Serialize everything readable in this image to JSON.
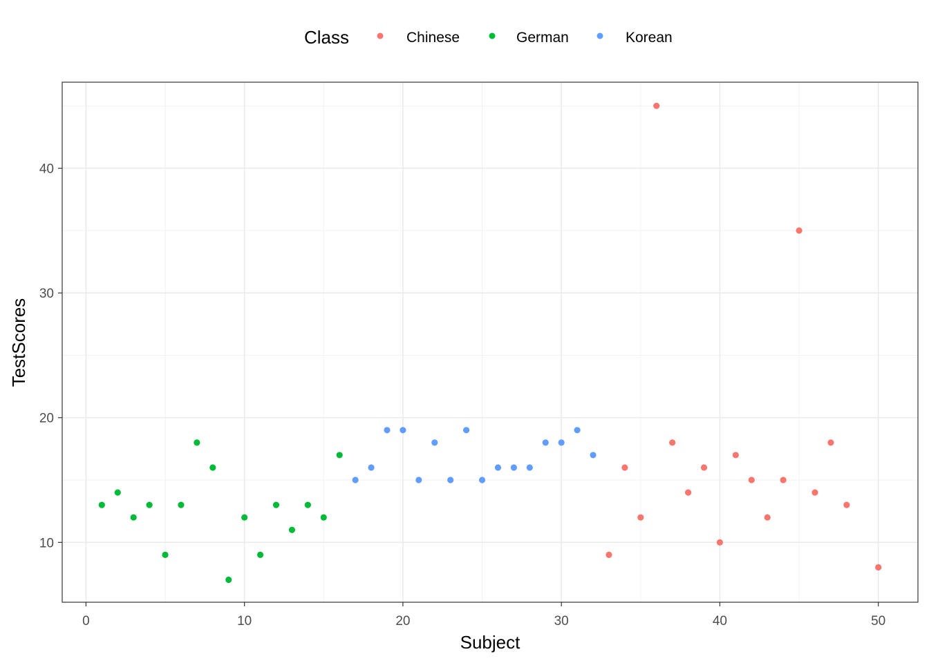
{
  "chart_data": {
    "type": "scatter",
    "xlabel": "Subject",
    "ylabel": "TestScores",
    "xlim": [
      -1.5,
      52.5
    ],
    "ylim": [
      5.2,
      46.9
    ],
    "x_ticks": [
      0,
      10,
      20,
      30,
      40,
      50
    ],
    "y_ticks": [
      10,
      20,
      30,
      40
    ],
    "grid": true,
    "legend": {
      "title": "Class",
      "position": "top",
      "entries": [
        "Chinese",
        "German",
        "Korean"
      ]
    },
    "colors": {
      "Chinese": "#F8766D",
      "German": "#00BA38",
      "Korean": "#619CFF"
    },
    "series": [
      {
        "name": "German",
        "x": [
          1,
          2,
          3,
          4,
          5,
          6,
          7,
          8,
          9,
          10,
          11,
          12,
          13,
          14,
          15,
          16
        ],
        "y": [
          13,
          14,
          12,
          13,
          9,
          13,
          18,
          16,
          7,
          12,
          9,
          13,
          11,
          13,
          12,
          17
        ]
      },
      {
        "name": "Korean",
        "x": [
          17,
          18,
          19,
          20,
          21,
          22,
          23,
          24,
          25,
          26,
          27,
          28,
          29,
          30,
          31,
          32
        ],
        "y": [
          15,
          16,
          19,
          19,
          15,
          18,
          15,
          19,
          15,
          16,
          16,
          16,
          18,
          18,
          19,
          17
        ]
      },
      {
        "name": "Chinese",
        "x": [
          33,
          34,
          35,
          36,
          37,
          38,
          39,
          40,
          41,
          42,
          43,
          44,
          45,
          46,
          47,
          48,
          50
        ],
        "y": [
          9,
          16,
          12,
          45,
          18,
          14,
          16,
          10,
          17,
          15,
          12,
          15,
          35,
          14,
          18,
          13,
          8
        ]
      }
    ]
  }
}
